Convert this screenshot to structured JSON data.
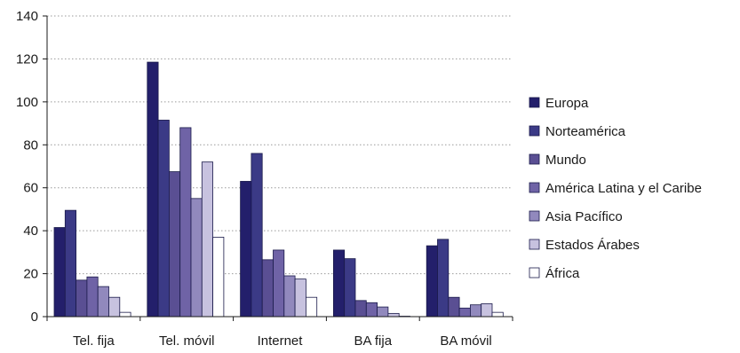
{
  "chart_data": {
    "type": "bar",
    "title": "",
    "xlabel": "",
    "ylabel": "",
    "categories": [
      "Tel. fija",
      "Tel. móvil",
      "Internet",
      "BA fija",
      "BA móvil"
    ],
    "yticks": [
      "0",
      "20",
      "40",
      "60",
      "80",
      "100",
      "120",
      "140"
    ],
    "ylim": [
      0,
      140
    ],
    "grid": "horizontal-dotted",
    "legend_position": "right",
    "series": [
      {
        "name": "Europa",
        "color": "#231f6b",
        "values": [
          41.5,
          118.5,
          63,
          31,
          33
        ]
      },
      {
        "name": "Norteamérica",
        "color": "#3b3a86",
        "values": [
          49.5,
          91.5,
          76,
          27,
          36
        ]
      },
      {
        "name": "Mundo",
        "color": "#5a4f93",
        "values": [
          17,
          67.5,
          26.5,
          7.5,
          9
        ]
      },
      {
        "name": "América Latina y el Caribe",
        "color": "#6f63a6",
        "values": [
          18.5,
          88,
          31,
          6.5,
          4
        ]
      },
      {
        "name": "Asia Pacífico",
        "color": "#9189bd",
        "values": [
          14,
          55,
          19,
          4.5,
          5.5
        ]
      },
      {
        "name": "Estados Árabes",
        "color": "#c7c2df",
        "values": [
          9,
          72,
          17.5,
          1.5,
          6
        ]
      },
      {
        "name": "África",
        "color": "#ffffff",
        "values": [
          2,
          37,
          9,
          0.2,
          2
        ]
      }
    ]
  }
}
